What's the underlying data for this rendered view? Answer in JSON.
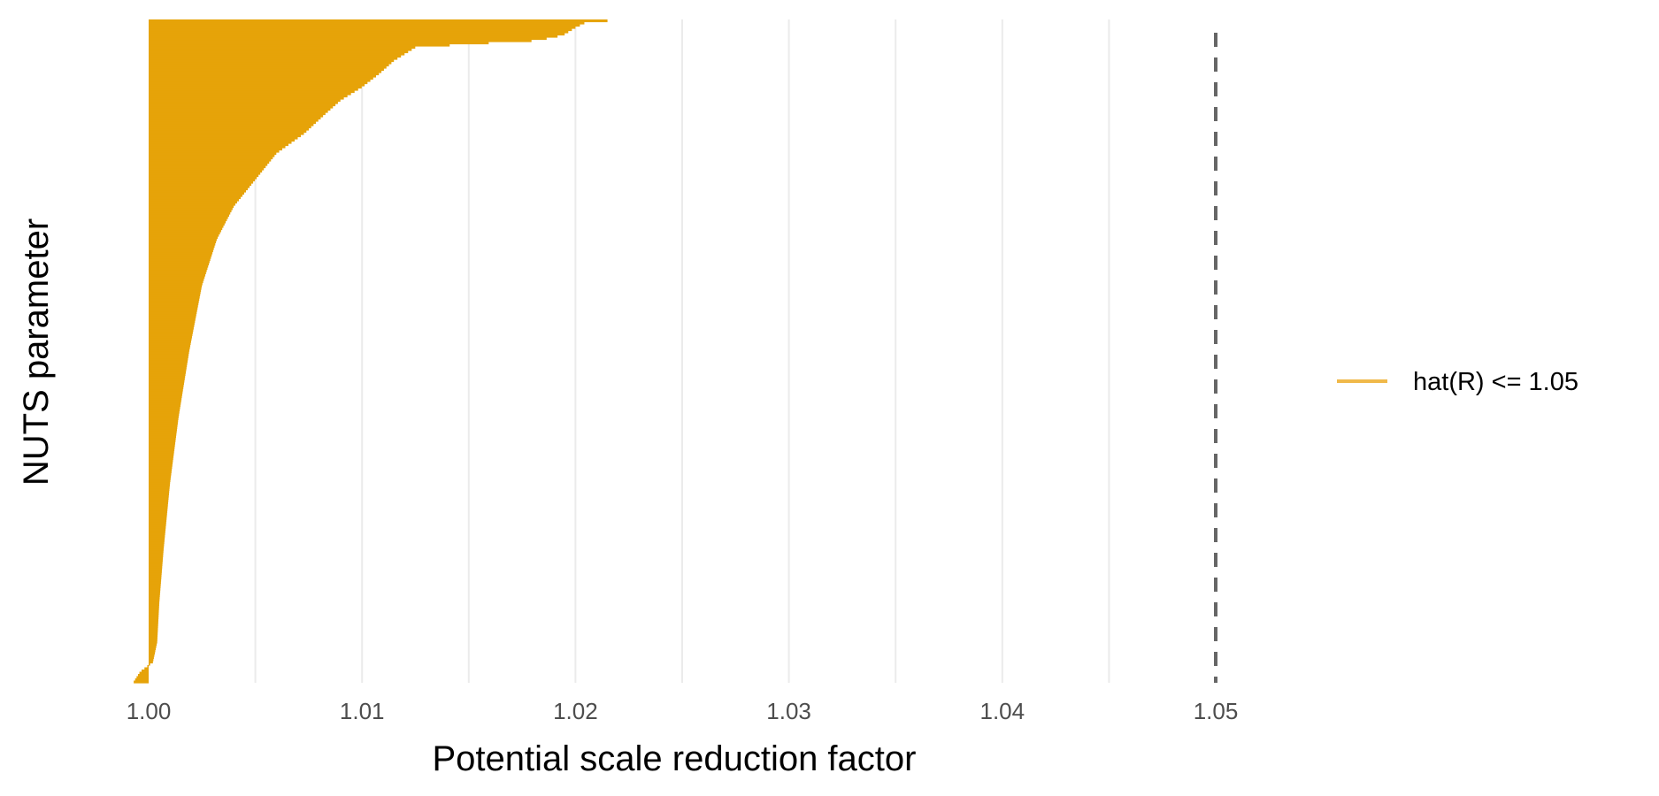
{
  "chart_data": {
    "type": "bar",
    "orientation": "horizontal",
    "title": "",
    "xlabel": "Potential scale reduction factor",
    "ylabel": "NUTS parameter",
    "xlim": [
      1.0,
      1.05
    ],
    "x_ticks": [
      1.0,
      1.01,
      1.02,
      1.03,
      1.04,
      1.05
    ],
    "x_tick_labels": [
      "1.00",
      "1.01",
      "1.02",
      "1.03",
      "1.04",
      "1.05"
    ],
    "minor_gridlines": [
      1.005,
      1.015,
      1.025,
      1.035,
      1.045
    ],
    "grid": true,
    "reference_line": {
      "x": 1.05,
      "style": "dashed",
      "color": "#666666"
    },
    "bar_color": "#E6A309",
    "legend": {
      "position": "right",
      "entries": [
        {
          "label": "hat(R) <= 1.05",
          "color": "#F0B94A"
        }
      ]
    },
    "series": [
      {
        "legend_label": "hat(R) <= 1.05",
        "sorted_ascending": true,
        "distribution_profile": [
          {
            "rank_fraction": 0.0,
            "value": 0.9993
          },
          {
            "rank_fraction": 0.015,
            "value": 0.9996
          },
          {
            "rank_fraction": 0.03,
            "value": 1.0002
          },
          {
            "rank_fraction": 0.06,
            "value": 1.0004
          },
          {
            "rank_fraction": 0.12,
            "value": 1.0005
          },
          {
            "rank_fraction": 0.2,
            "value": 1.0007
          },
          {
            "rank_fraction": 0.3,
            "value": 1.001
          },
          {
            "rank_fraction": 0.4,
            "value": 1.0014
          },
          {
            "rank_fraction": 0.5,
            "value": 1.0019
          },
          {
            "rank_fraction": 0.6,
            "value": 1.0025
          },
          {
            "rank_fraction": 0.67,
            "value": 1.0032
          },
          {
            "rank_fraction": 0.72,
            "value": 1.004
          },
          {
            "rank_fraction": 0.76,
            "value": 1.005
          },
          {
            "rank_fraction": 0.8,
            "value": 1.006
          },
          {
            "rank_fraction": 0.83,
            "value": 1.0073
          },
          {
            "rank_fraction": 0.86,
            "value": 1.0083
          },
          {
            "rank_fraction": 0.88,
            "value": 1.009
          },
          {
            "rank_fraction": 0.9,
            "value": 1.01
          },
          {
            "rank_fraction": 0.92,
            "value": 1.0108
          },
          {
            "rank_fraction": 0.94,
            "value": 1.0115
          },
          {
            "rank_fraction": 0.96,
            "value": 1.0125
          },
          {
            "rank_fraction": 0.965,
            "value": 1.015
          },
          {
            "rank_fraction": 0.97,
            "value": 1.018
          },
          {
            "rank_fraction": 0.975,
            "value": 1.019
          },
          {
            "rank_fraction": 0.98,
            "value": 1.0195
          },
          {
            "rank_fraction": 0.99,
            "value": 1.02
          },
          {
            "rank_fraction": 0.998,
            "value": 1.0205
          },
          {
            "rank_fraction": 1.0,
            "value": 1.0215
          }
        ]
      }
    ]
  }
}
